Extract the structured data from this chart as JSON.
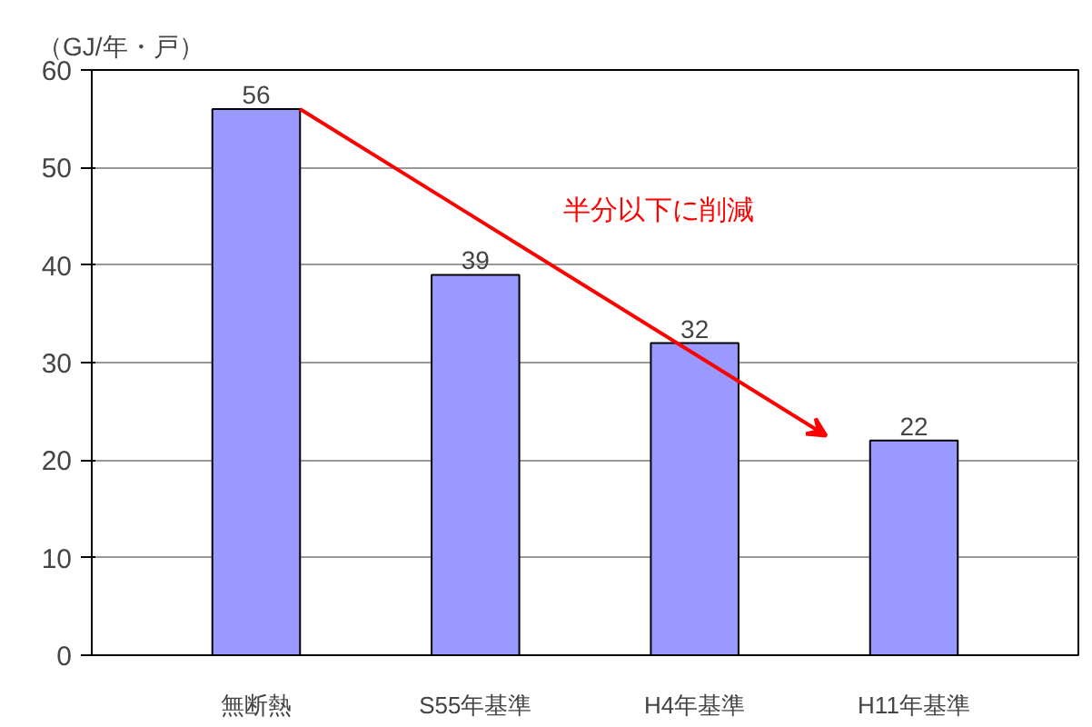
{
  "chart_data": {
    "type": "bar",
    "ylabel": "（GJ/年・戸）",
    "categories": [
      "無断熱",
      "S55年基準",
      "H4年基準",
      "H11年基準"
    ],
    "values": [
      56,
      39,
      32,
      22
    ],
    "color": "#9999ff",
    "ylim": [
      0,
      60
    ],
    "yticks": [
      0,
      10,
      20,
      30,
      40,
      50,
      60
    ],
    "grid": "y",
    "data_labels": true,
    "annotations": [
      "半分以下に削減"
    ]
  }
}
